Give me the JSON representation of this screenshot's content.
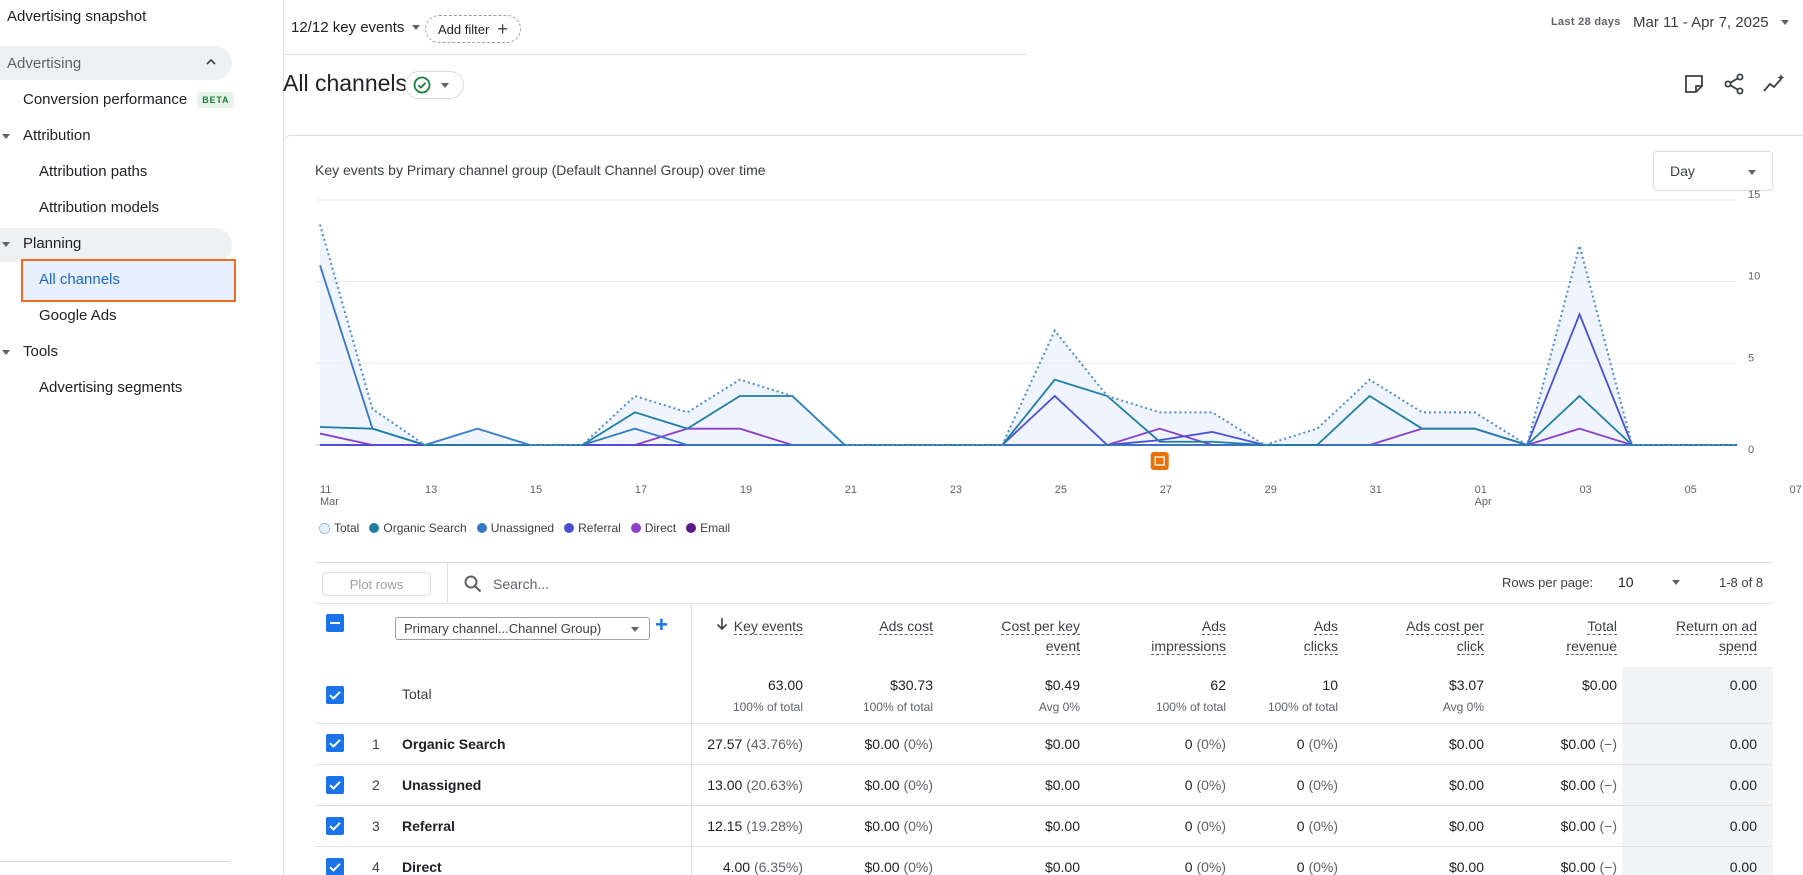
{
  "sidebar": {
    "title": "Advertising snapshot",
    "section": "Advertising",
    "conversion_performance": "Conversion performance",
    "beta": "BETA",
    "attribution": "Attribution",
    "attribution_paths": "Attribution paths",
    "attribution_models": "Attribution models",
    "planning": "Planning",
    "all_channels": "All channels",
    "google_ads": "Google Ads",
    "tools": "Tools",
    "advertising_segments": "Advertising segments"
  },
  "topbar": {
    "key_events": "12/12 key events",
    "add_filter": "Add filter",
    "date_label": "Last 28 days",
    "date_range": "Mar 11 - Apr 7, 2025"
  },
  "page": {
    "title": "All channels"
  },
  "chart": {
    "title": "Key events by Primary channel group (Default Channel Group) over time",
    "granularity": "Day",
    "y_ticks": [
      "15",
      "10",
      "5",
      "0"
    ],
    "x_ticks": [
      "11",
      "13",
      "15",
      "17",
      "19",
      "21",
      "23",
      "25",
      "27",
      "29",
      "31",
      "01",
      "03",
      "05",
      "07"
    ],
    "x_month_labels": [
      "Mar",
      "Apr"
    ],
    "legend": [
      "Total",
      "Organic Search",
      "Unassigned",
      "Referral",
      "Direct",
      "Email"
    ]
  },
  "chart_data": {
    "type": "line",
    "title": "Key events by Primary channel group (Default Channel Group) over time",
    "x": [
      "Mar 11",
      "Mar 12",
      "Mar 13",
      "Mar 14",
      "Mar 15",
      "Mar 16",
      "Mar 17",
      "Mar 18",
      "Mar 19",
      "Mar 20",
      "Mar 21",
      "Mar 22",
      "Mar 23",
      "Mar 24",
      "Mar 25",
      "Mar 26",
      "Mar 27",
      "Mar 28",
      "Mar 29",
      "Mar 30",
      "Mar 31",
      "Apr 1",
      "Apr 2",
      "Apr 3",
      "Apr 4",
      "Apr 5",
      "Apr 6",
      "Apr 7"
    ],
    "ylim": [
      0,
      15
    ],
    "series": [
      {
        "name": "Total",
        "color": "#4c8bd7",
        "values": [
          13.5,
          2.2,
          0,
          1.0,
          0,
          0,
          3.0,
          2.0,
          4.0,
          3.0,
          0,
          0,
          0,
          0,
          7.0,
          3.0,
          2.0,
          2.0,
          0,
          1.0,
          4.0,
          2.0,
          2.0,
          0,
          12.2,
          0,
          0,
          0
        ]
      },
      {
        "name": "Organic Search",
        "color": "#1e7fa3",
        "values": [
          1.1,
          1.0,
          0,
          0,
          0,
          0,
          2.0,
          1.0,
          3.0,
          3.0,
          0,
          0,
          0,
          0,
          4.0,
          3.0,
          0.2,
          0.2,
          0,
          0,
          3.0,
          1.0,
          1.0,
          0,
          3.0,
          0,
          0,
          0
        ]
      },
      {
        "name": "Unassigned",
        "color": "#3478c6",
        "values": [
          11.0,
          1.0,
          0,
          1.0,
          0,
          0,
          1.0,
          0,
          0,
          0,
          0,
          0,
          0,
          0,
          0,
          0,
          0,
          0,
          0,
          0,
          0,
          0,
          0,
          0,
          0,
          0,
          0,
          0
        ]
      },
      {
        "name": "Referral",
        "color": "#4b4fd6",
        "values": [
          0,
          0,
          0,
          0,
          0,
          0,
          0,
          0,
          0,
          0,
          0,
          0,
          0,
          0,
          3.0,
          0,
          0.3,
          0.8,
          0,
          0,
          0,
          0,
          0,
          0,
          8.0,
          0,
          0,
          0
        ]
      },
      {
        "name": "Direct",
        "color": "#8a3ec9",
        "values": [
          0.7,
          0,
          0,
          0,
          0,
          0,
          0,
          1.0,
          1.0,
          0,
          0,
          0,
          0,
          0,
          0,
          0,
          1.0,
          0,
          0,
          0,
          0,
          1.0,
          1.0,
          0,
          1.0,
          0,
          0,
          0
        ]
      },
      {
        "name": "Email",
        "color": "#5b1a8c",
        "values": [
          0,
          0,
          0,
          0,
          0,
          0,
          0,
          0,
          0,
          0,
          0,
          0,
          0,
          0,
          0,
          0,
          0,
          0,
          0,
          0,
          0,
          0,
          0,
          0,
          0,
          0,
          0,
          0
        ]
      }
    ]
  },
  "table_toolbar": {
    "plot_rows": "Plot rows",
    "search_placeholder": "Search...",
    "rows_per_page_label": "Rows per page:",
    "rows_per_page": "10",
    "page_range": "1-8 of 8"
  },
  "table": {
    "dimension": "Primary channel...Channel Group)",
    "headers": {
      "key_events": [
        "Key events"
      ],
      "ads_cost": [
        "Ads cost"
      ],
      "cost_per_key_event": [
        "Cost per key",
        "event"
      ],
      "ads_impressions": [
        "Ads",
        "impressions"
      ],
      "ads_clicks": [
        "Ads",
        "clicks"
      ],
      "ads_cpc": [
        "Ads cost per",
        "click"
      ],
      "total_revenue": [
        "Total",
        "revenue"
      ],
      "roas": [
        "Return on ad",
        "spend"
      ]
    },
    "total": {
      "label": "Total",
      "key_events": "63.00",
      "key_events_sub": "100% of total",
      "ads_cost": "$30.73",
      "ads_cost_sub": "100% of total",
      "cost_per_key_event": "$0.49",
      "cost_per_key_event_sub": "Avg 0%",
      "ads_impressions": "62",
      "ads_impressions_sub": "100% of total",
      "ads_clicks": "10",
      "ads_clicks_sub": "100% of total",
      "ads_cpc": "$3.07",
      "ads_cpc_sub": "Avg 0%",
      "total_revenue": "$0.00",
      "roas": "0.00"
    },
    "rows": [
      {
        "n": "1",
        "name": "Organic Search",
        "ke": "27.57",
        "ke_pct": "(43.76%)",
        "cost": "$0.00",
        "cost_pct": "(0%)",
        "cpke": "$0.00",
        "imp": "0",
        "imp_pct": "(0%)",
        "clicks": "0",
        "clicks_pct": "(0%)",
        "cpc": "$0.00",
        "rev": "$0.00",
        "rev_pct": "(−)",
        "roas": "0.00"
      },
      {
        "n": "2",
        "name": "Unassigned",
        "ke": "13.00",
        "ke_pct": "(20.63%)",
        "cost": "$0.00",
        "cost_pct": "(0%)",
        "cpke": "$0.00",
        "imp": "0",
        "imp_pct": "(0%)",
        "clicks": "0",
        "clicks_pct": "(0%)",
        "cpc": "$0.00",
        "rev": "$0.00",
        "rev_pct": "(−)",
        "roas": "0.00"
      },
      {
        "n": "3",
        "name": "Referral",
        "ke": "12.15",
        "ke_pct": "(19.28%)",
        "cost": "$0.00",
        "cost_pct": "(0%)",
        "cpke": "$0.00",
        "imp": "0",
        "imp_pct": "(0%)",
        "clicks": "0",
        "clicks_pct": "(0%)",
        "cpc": "$0.00",
        "rev": "$0.00",
        "rev_pct": "(−)",
        "roas": "0.00"
      },
      {
        "n": "4",
        "name": "Direct",
        "ke": "4.00",
        "ke_pct": "(6.35%)",
        "cost": "$0.00",
        "cost_pct": "(0%)",
        "cpke": "$0.00",
        "imp": "0",
        "imp_pct": "(0%)",
        "clicks": "0",
        "clicks_pct": "(0%)",
        "cpc": "$0.00",
        "rev": "$0.00",
        "rev_pct": "(−)",
        "roas": "0.00"
      }
    ]
  }
}
